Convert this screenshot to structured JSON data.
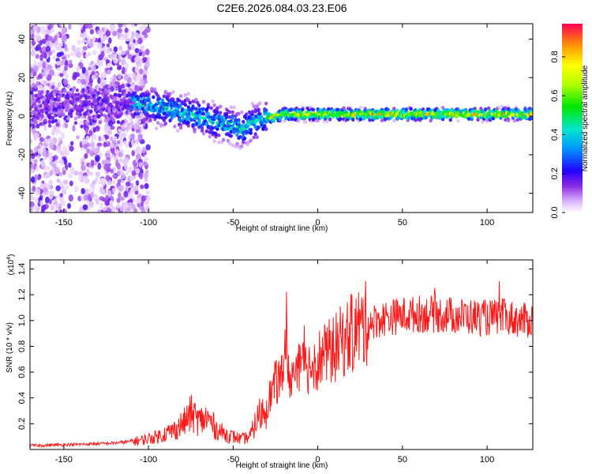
{
  "title": "C2E6.2026.084.03.23.E06",
  "chart_data": [
    {
      "type": "heatmap",
      "title": "C2E6.2026.084.03.23.E06",
      "xlabel": "Height of straight line (km)",
      "ylabel": "Frequency (Hz)",
      "xlim": [
        -170,
        127
      ],
      "ylim": [
        -50,
        48
      ],
      "xticks": [
        -150,
        -100,
        -50,
        0,
        50,
        100
      ],
      "yticks": [
        -40,
        -20,
        0,
        20,
        40
      ],
      "colorbar": {
        "label": "Normalized spectral amplitude",
        "range": [
          0,
          0.97
        ],
        "ticks": [
          0.0,
          0.2,
          0.4,
          0.6,
          0.8
        ],
        "tick_labels": [
          "0.0",
          "0.2",
          "0.4",
          "0.6",
          "0.8"
        ]
      },
      "ridge": {
        "x": [
          -170,
          -150,
          -130,
          -110,
          -100,
          -90,
          -80,
          -70,
          -60,
          -50,
          -45,
          -40,
          -35,
          -30,
          -25,
          -20,
          0,
          20,
          40,
          60,
          80,
          100,
          127
        ],
        "freq": [
          5,
          6,
          5,
          7,
          6,
          4,
          2,
          0,
          -3,
          -5,
          -7,
          -4,
          -3,
          -1,
          0,
          1,
          1,
          1,
          1,
          1,
          1,
          1,
          1
        ]
      }
    },
    {
      "type": "line",
      "xlabel": "Height of straight line (km)",
      "ylabel": "SNR (10 * v/v)",
      "yscale_label": "(x10",
      "yscale_exp": "4",
      "xlim": [
        -170,
        127
      ],
      "ylim": [
        0,
        1.47
      ],
      "xticks": [
        -150,
        -100,
        -50,
        0,
        50,
        100
      ],
      "yticks": [
        0.2,
        0.4,
        0.6,
        0.8,
        1.0,
        1.2,
        1.4
      ],
      "ytick_labels": [
        "0.2",
        "0.4",
        "0.6",
        "0.8",
        "1.0",
        "1.2",
        "1.4"
      ],
      "series": [
        {
          "name": "SNR",
          "color": "#ff1a1a",
          "x": [
            -170,
            -140,
            -120,
            -105,
            -95,
            -85,
            -78,
            -75,
            -70,
            -65,
            -60,
            -55,
            -50,
            -45,
            -40,
            -35,
            -32,
            -28,
            -25,
            -20,
            -15,
            -10,
            -5,
            0,
            5,
            10,
            15,
            20,
            25,
            30,
            40,
            50,
            60,
            70,
            80,
            90,
            100,
            110,
            120,
            127
          ],
          "y": [
            0.03,
            0.04,
            0.05,
            0.07,
            0.1,
            0.15,
            0.22,
            0.28,
            0.22,
            0.24,
            0.16,
            0.12,
            0.1,
            0.08,
            0.1,
            0.26,
            0.3,
            0.42,
            0.52,
            0.55,
            0.58,
            0.62,
            0.65,
            0.7,
            0.74,
            0.78,
            0.85,
            0.9,
            0.95,
            0.98,
            1.02,
            1.04,
            1.05,
            1.05,
            1.04,
            1.03,
            1.02,
            1.03,
            1.0,
            1.0
          ]
        }
      ]
    }
  ]
}
